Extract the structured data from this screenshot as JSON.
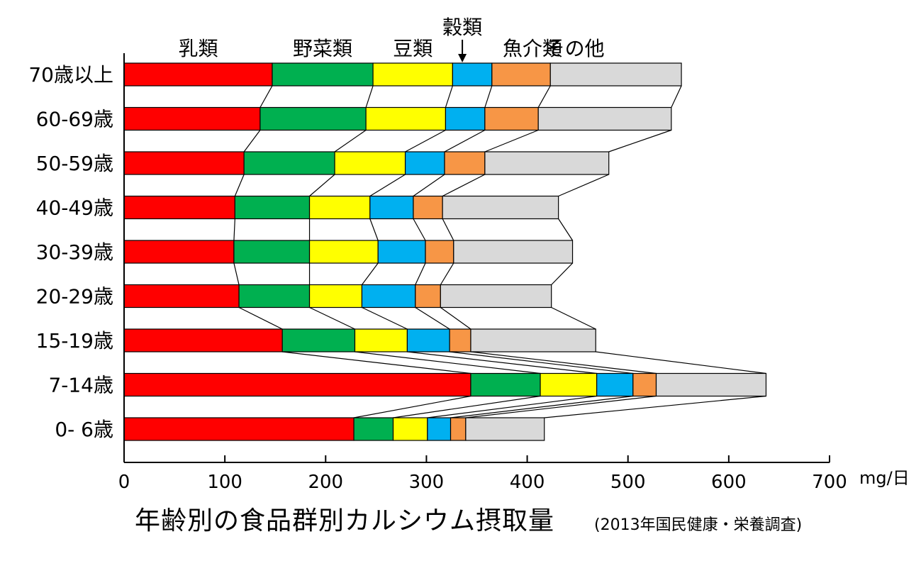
{
  "chart_data": {
    "type": "bar",
    "stacked": true,
    "orientation": "horizontal",
    "title": "年齢別の食品群別カルシウム摂取量",
    "source": "(2013年国民健康・栄養調査)",
    "xunit": "mg/日",
    "xlim": [
      0,
      700
    ],
    "xticks": [
      "0",
      "100",
      "200",
      "300",
      "400",
      "500",
      "600",
      "700"
    ],
    "categories": [
      "70歳以上",
      "60-69歳",
      "50-59歳",
      "40-49歳",
      "30-39歳",
      "20-29歳",
      "15-19歳",
      "7-14歳",
      "0- 6歳"
    ],
    "series": [
      {
        "name": "乳類",
        "color": "#ff0000",
        "values": [
          147,
          135,
          119,
          110,
          109,
          114,
          157,
          344,
          228
        ]
      },
      {
        "name": "野菜類",
        "color": "#00b050",
        "values": [
          100,
          105,
          90,
          74,
          75,
          70,
          72,
          69,
          39
        ]
      },
      {
        "name": "豆類",
        "color": "#ffff00",
        "values": [
          79,
          79,
          70,
          60,
          68,
          52,
          52,
          56,
          34
        ]
      },
      {
        "name": "穀類",
        "color": "#00b0f0",
        "values": [
          39,
          39,
          39,
          43,
          47,
          53,
          42,
          36,
          23
        ]
      },
      {
        "name": "魚介類",
        "color": "#f79646",
        "values": [
          58,
          53,
          40,
          29,
          28,
          25,
          21,
          23,
          15
        ]
      },
      {
        "name": "その他",
        "color": "#d9d9d9",
        "values": [
          130,
          132,
          123,
          115,
          118,
          110,
          124,
          109,
          78
        ]
      }
    ]
  }
}
